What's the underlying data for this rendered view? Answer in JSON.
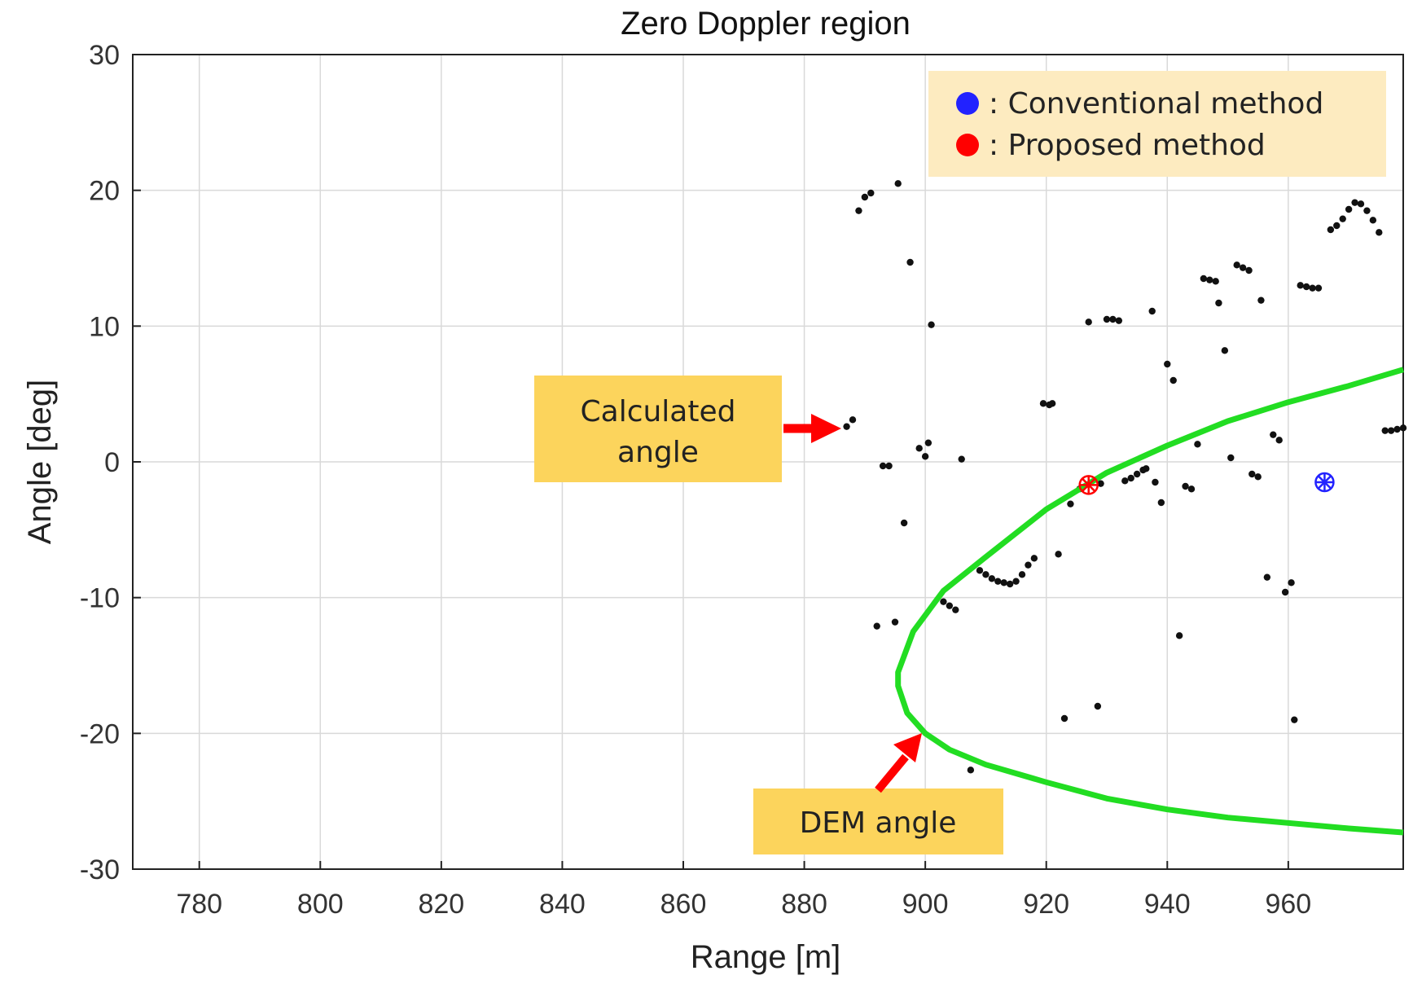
{
  "chart_data": {
    "type": "scatter",
    "title": "Zero Doppler region",
    "xlabel": "Range [m]",
    "ylabel": "Angle [deg]",
    "xlim": [
      769,
      979
    ],
    "ylim": [
      -30,
      30
    ],
    "xticks": [
      780,
      800,
      820,
      840,
      860,
      880,
      900,
      920,
      940,
      960
    ],
    "yticks": [
      30,
      20,
      10,
      0,
      -10,
      -20,
      -30
    ],
    "grid": true,
    "series": [
      {
        "name": "Calculated angle",
        "kind": "scatter",
        "color": "#111111",
        "points": [
          [
            887,
            2.6
          ],
          [
            888,
            3.1
          ],
          [
            889,
            18.5
          ],
          [
            890,
            19.5
          ],
          [
            891,
            19.8
          ],
          [
            895.5,
            20.5
          ],
          [
            897.5,
            14.7
          ],
          [
            892,
            -12.1
          ],
          [
            893,
            -0.3
          ],
          [
            894,
            -0.3
          ],
          [
            895,
            -11.8
          ],
          [
            896.5,
            -4.5
          ],
          [
            899,
            1.0
          ],
          [
            900,
            0.4
          ],
          [
            900.5,
            1.4
          ],
          [
            901,
            10.1
          ],
          [
            906,
            0.2
          ],
          [
            903,
            -10.3
          ],
          [
            904,
            -10.6
          ],
          [
            905,
            -10.9
          ],
          [
            907.5,
            -22.7
          ],
          [
            909,
            -8.0
          ],
          [
            910,
            -8.3
          ],
          [
            911,
            -8.6
          ],
          [
            912,
            -8.8
          ],
          [
            913,
            -8.9
          ],
          [
            914,
            -9.0
          ],
          [
            915,
            -8.8
          ],
          [
            916,
            -8.3
          ],
          [
            917,
            -7.6
          ],
          [
            918,
            -7.1
          ],
          [
            919.5,
            4.3
          ],
          [
            920.5,
            4.2
          ],
          [
            921,
            4.3
          ],
          [
            922,
            -6.8
          ],
          [
            923,
            -18.9
          ],
          [
            924,
            -3.1
          ],
          [
            925.5,
            -2.0
          ],
          [
            927,
            10.3
          ],
          [
            928.5,
            -18.0
          ],
          [
            929,
            -1.6
          ],
          [
            930,
            10.5
          ],
          [
            931,
            10.5
          ],
          [
            932,
            10.4
          ],
          [
            933,
            -1.4
          ],
          [
            934,
            -1.2
          ],
          [
            935,
            -0.9
          ],
          [
            936,
            -0.6
          ],
          [
            936.5,
            -0.5
          ],
          [
            937.5,
            11.1
          ],
          [
            938,
            -1.5
          ],
          [
            939,
            -3.0
          ],
          [
            940,
            7.2
          ],
          [
            941,
            6.0
          ],
          [
            942,
            -12.8
          ],
          [
            943,
            -1.8
          ],
          [
            944,
            -2.0
          ],
          [
            945,
            1.3
          ],
          [
            946,
            13.5
          ],
          [
            947,
            13.4
          ],
          [
            948,
            13.3
          ],
          [
            948.5,
            11.7
          ],
          [
            949.5,
            8.2
          ],
          [
            950.5,
            0.3
          ],
          [
            951.5,
            14.5
          ],
          [
            952.5,
            14.3
          ],
          [
            953.5,
            14.1
          ],
          [
            954,
            -0.9
          ],
          [
            955,
            -1.1
          ],
          [
            955.5,
            11.9
          ],
          [
            956.5,
            -8.5
          ],
          [
            957.5,
            2.0
          ],
          [
            958.5,
            1.6
          ],
          [
            959.5,
            -9.6
          ],
          [
            960.5,
            -8.9
          ],
          [
            961,
            -19.0
          ],
          [
            962,
            13.0
          ],
          [
            963,
            12.9
          ],
          [
            964,
            12.8
          ],
          [
            965,
            12.8
          ],
          [
            967,
            17.1
          ],
          [
            968,
            17.4
          ],
          [
            969,
            17.9
          ],
          [
            970,
            18.6
          ],
          [
            971,
            19.1
          ],
          [
            972,
            19.0
          ],
          [
            973,
            18.5
          ],
          [
            974,
            17.8
          ],
          [
            975,
            16.9
          ],
          [
            976,
            2.3
          ],
          [
            977,
            2.3
          ],
          [
            978,
            2.4
          ],
          [
            979,
            2.5
          ]
        ]
      },
      {
        "name": "DEM angle",
        "kind": "line",
        "color": "#22dd22",
        "points": [
          [
            979,
            6.8
          ],
          [
            970,
            5.6
          ],
          [
            960,
            4.4
          ],
          [
            950,
            3.0
          ],
          [
            940,
            1.2
          ],
          [
            930,
            -0.8
          ],
          [
            920,
            -3.5
          ],
          [
            910,
            -7.0
          ],
          [
            903,
            -9.5
          ],
          [
            898,
            -12.5
          ],
          [
            895.5,
            -15.5
          ],
          [
            895.5,
            -16.5
          ],
          [
            897,
            -18.5
          ],
          [
            900,
            -20.0
          ],
          [
            904,
            -21.2
          ],
          [
            910,
            -22.3
          ],
          [
            920,
            -23.6
          ],
          [
            930,
            -24.8
          ],
          [
            940,
            -25.6
          ],
          [
            950,
            -26.2
          ],
          [
            960,
            -26.6
          ],
          [
            970,
            -27.0
          ],
          [
            979,
            -27.3
          ]
        ]
      },
      {
        "name": "Proposed method",
        "kind": "marker",
        "color": "#ff0000",
        "points": [
          [
            927,
            -1.7
          ]
        ]
      },
      {
        "name": "Conventional method",
        "kind": "marker",
        "color": "#2222ff",
        "points": [
          [
            966,
            -1.5
          ]
        ]
      }
    ],
    "legend": {
      "placement": "top-right",
      "entries": [
        {
          "label": ": Conventional  method",
          "color": "#2222ff"
        },
        {
          "label": ": Proposed  method",
          "color": "#ff0000"
        }
      ]
    },
    "annotations": [
      {
        "name": "calculated-angle",
        "lines": [
          "Calculated",
          "angle"
        ],
        "arrow_to": [
          886,
          2.6
        ]
      },
      {
        "name": "dem-angle",
        "lines": [
          "DEM angle"
        ],
        "arrow_to": [
          900,
          -20.0
        ]
      }
    ]
  }
}
